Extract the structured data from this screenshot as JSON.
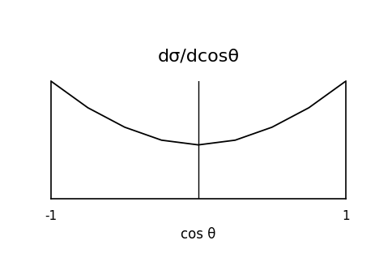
{
  "chart_data": {
    "type": "line",
    "title": "dσ/dcosθ",
    "x_label": "cos θ",
    "x": [
      -1,
      -0.75,
      -0.5,
      -0.25,
      0,
      0.25,
      0.5,
      0.75,
      1
    ],
    "values": [
      2.0,
      1.55,
      1.22,
      1.0,
      0.92,
      1.0,
      1.22,
      1.55,
      2.0
    ],
    "color": "#000000",
    "xlim": [
      -1,
      1
    ],
    "xticks": [
      -1,
      1
    ],
    "ylim": [
      0,
      2.0
    ],
    "yticks": [],
    "tick_labels": "x",
    "grid": false
  }
}
